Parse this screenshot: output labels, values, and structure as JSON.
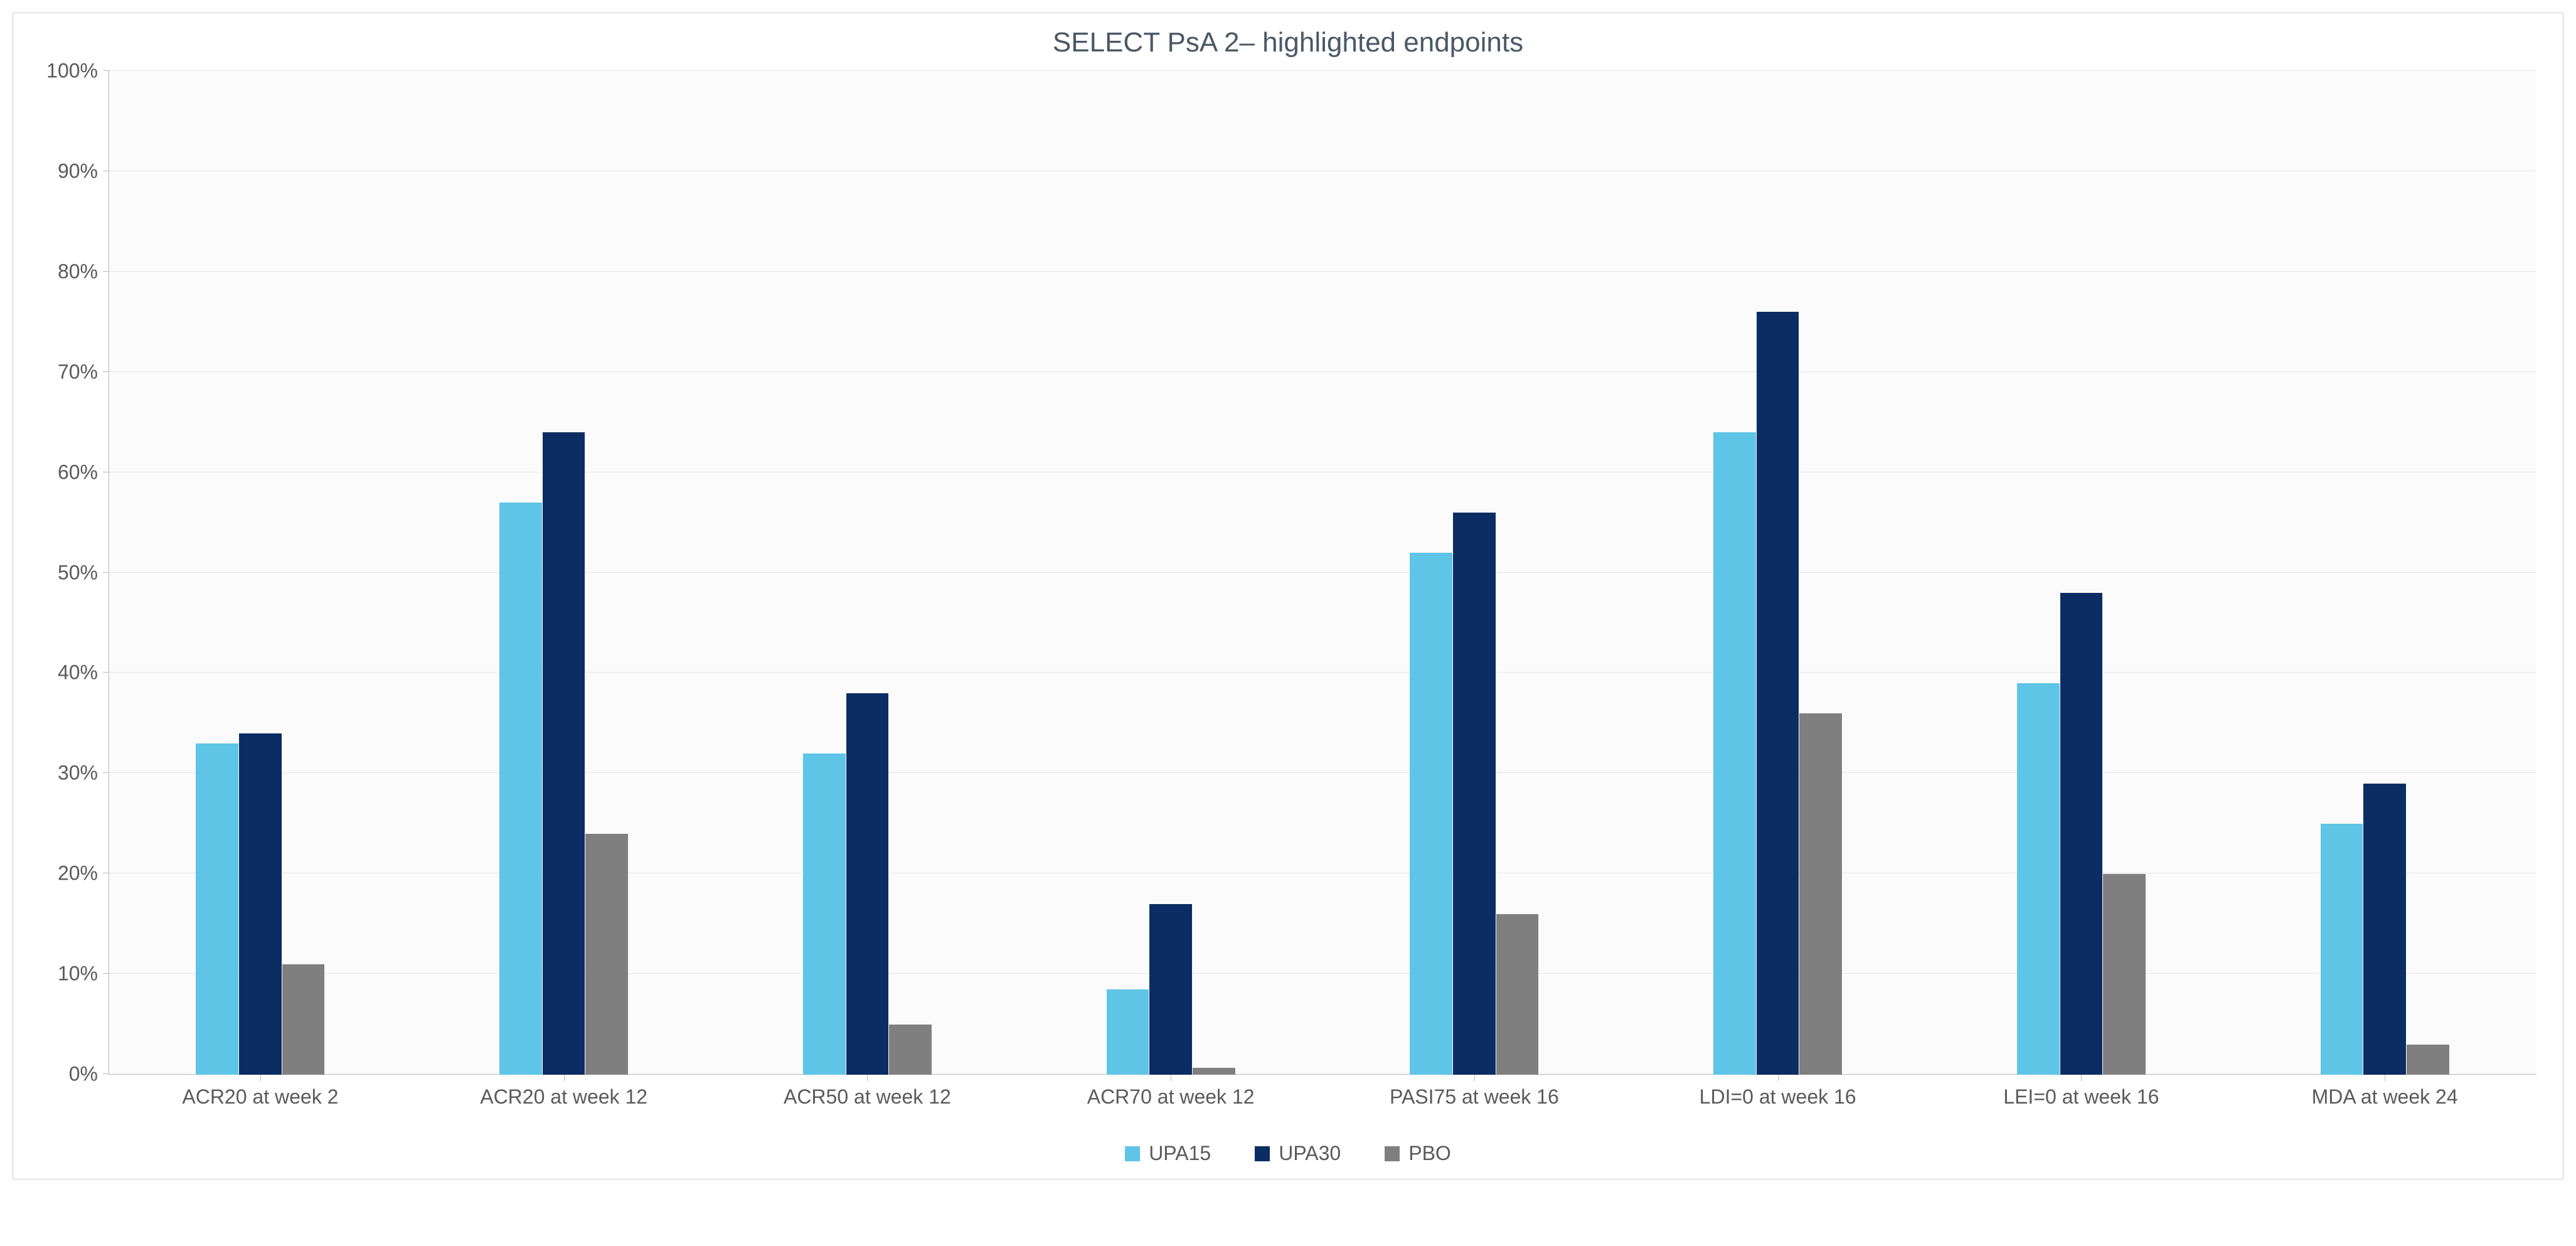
{
  "chart": {
    "type": "bar",
    "title": "SELECT PsA 2– highlighted endpoints",
    "title_color": "#4a5866",
    "title_fontsize": 44,
    "background_color": "#fbfbfb",
    "grid_color": "#e6e6e6",
    "axis_color": "#b8b8b8",
    "tick_label_color": "#5a5a5a",
    "tick_fontsize": 32,
    "ylim": [
      0,
      100
    ],
    "ytick_step": 10,
    "y_suffix": "%",
    "bar_width_pct": 14,
    "categories": [
      "ACR20 at week 2",
      "ACR20 at week 12",
      "ACR50 at week 12",
      "ACR70 at week 12",
      "PASI75 at week 16",
      "LDI=0 at week 16",
      "LEI=0 at week 16",
      "MDA at week 24"
    ],
    "series": [
      {
        "name": "UPA15",
        "color": "#5ec5e6",
        "values": [
          33,
          57,
          32,
          8.5,
          52,
          64,
          39,
          25
        ]
      },
      {
        "name": "UPA30",
        "color": "#0c2d63",
        "values": [
          34,
          64,
          38,
          17,
          56,
          76,
          48,
          29
        ]
      },
      {
        "name": "PBO",
        "color": "#7f7f7f",
        "values": [
          11,
          24,
          5,
          0.7,
          16,
          36,
          20,
          3
        ]
      }
    ],
    "legend_position": "bottom"
  }
}
